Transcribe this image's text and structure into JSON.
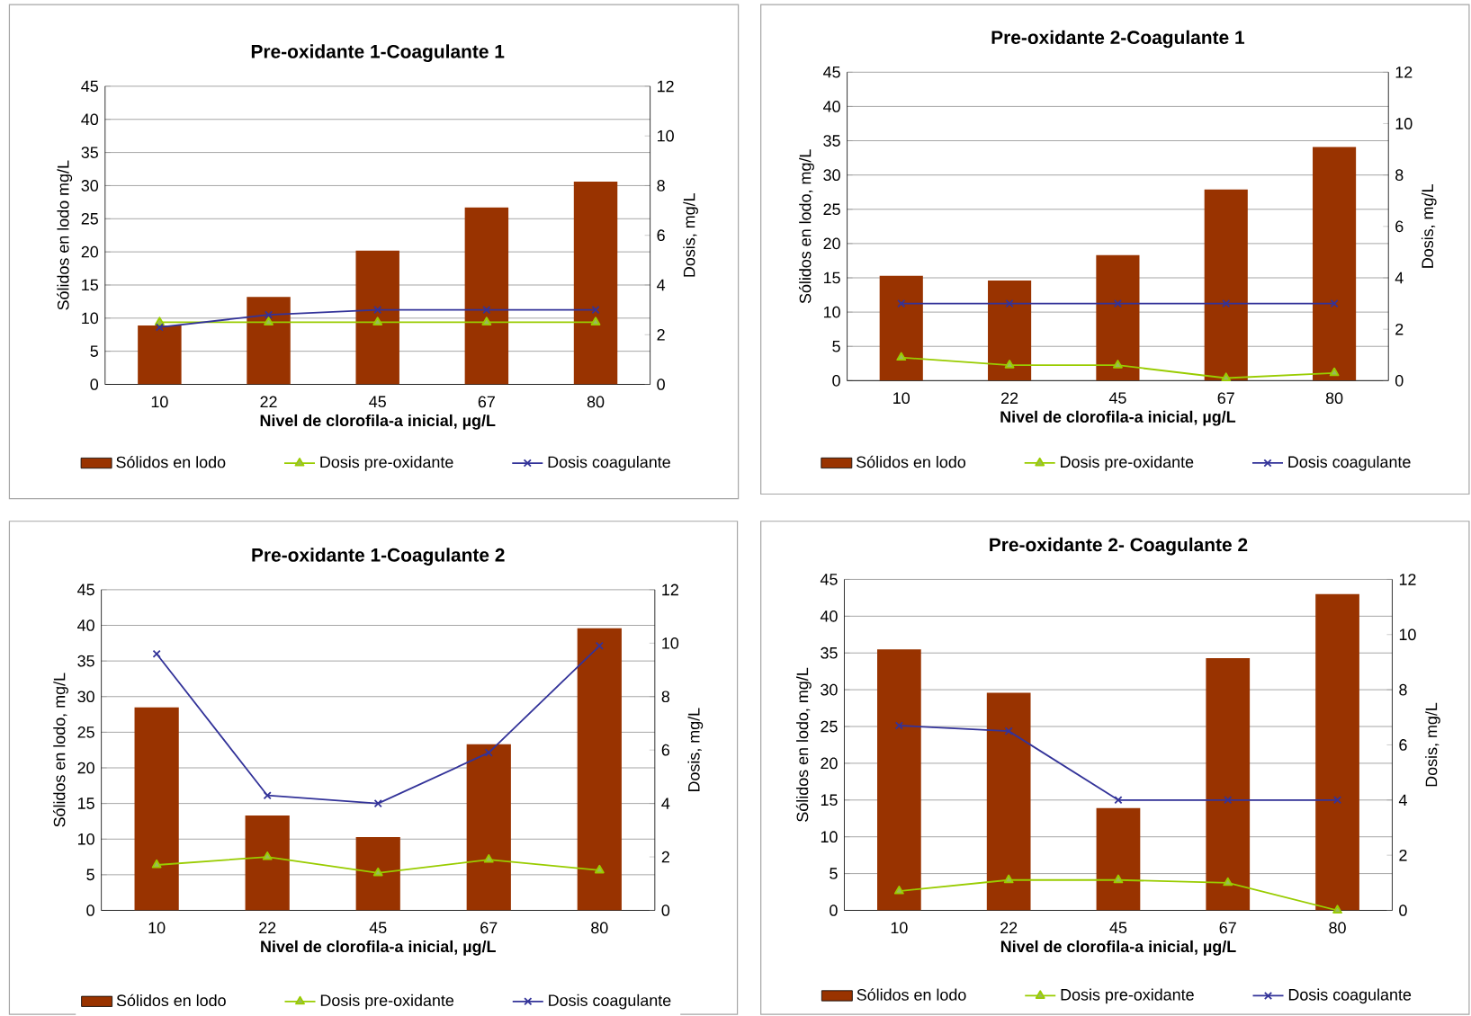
{
  "chart_data": [
    {
      "type": "bar",
      "title": "Pre-oxidante 1-Coagulante 1",
      "xlabel": "Nivel de clorofila-a inicial, µg/L",
      "ylabel": "Sólidos en lodo mg/L",
      "y2label": "Dosis, mg/L",
      "categories": [
        "10",
        "22",
        "45",
        "67",
        "80"
      ],
      "ylim": [
        0,
        45
      ],
      "yticks": [
        0,
        5,
        10,
        15,
        20,
        25,
        30,
        35,
        40,
        45
      ],
      "y2lim": [
        0,
        12
      ],
      "y2ticks": [
        0,
        2,
        4,
        6,
        8,
        10,
        12
      ],
      "grid": "y",
      "legend": "bottom",
      "series": [
        {
          "name": "Sólidos en lodo",
          "color": "#993300",
          "values": [
            8.9,
            13.2,
            20.2,
            26.7,
            30.6
          ]
        },
        {
          "name": "Dosis pre-oxidante",
          "type": "line",
          "axis": "y2",
          "marker": "triangle",
          "color": "#99cc00",
          "values": [
            2.5,
            2.5,
            2.5,
            2.5,
            2.5
          ]
        },
        {
          "name": "Dosis coagulante",
          "type": "line",
          "axis": "y2",
          "marker": "cross",
          "color": "#333399",
          "values": [
            2.3,
            2.8,
            3.0,
            3.0,
            3.0
          ]
        }
      ]
    },
    {
      "type": "bar",
      "title": "Pre-oxidante 2-Coagulante 1",
      "xlabel": "Nivel de clorofila-a inicial, µg/L",
      "ylabel": "Sólidos en lodo, mg/L",
      "y2label": "Dosis, mg/L",
      "categories": [
        "10",
        "22",
        "45",
        "67",
        "80"
      ],
      "ylim": [
        0,
        45
      ],
      "yticks": [
        0,
        5,
        10,
        15,
        20,
        25,
        30,
        35,
        40,
        45
      ],
      "y2lim": [
        0,
        12
      ],
      "y2ticks": [
        0,
        2,
        4,
        6,
        8,
        10,
        12
      ],
      "grid": "y",
      "legend": "bottom",
      "series": [
        {
          "name": "Sólidos en lodo",
          "color": "#993300",
          "values": [
            15.3,
            14.6,
            18.3,
            27.9,
            34.1
          ]
        },
        {
          "name": "Dosis pre-oxidante",
          "type": "line",
          "axis": "y2",
          "marker": "triangle",
          "color": "#99cc00",
          "values": [
            0.9,
            0.6,
            0.6,
            0.1,
            0.3
          ]
        },
        {
          "name": "Dosis coagulante",
          "type": "line",
          "axis": "y2",
          "marker": "cross",
          "color": "#333399",
          "values": [
            3.0,
            3.0,
            3.0,
            3.0,
            3.0
          ]
        }
      ]
    },
    {
      "type": "bar",
      "title": "Pre-oxidante 1-Coagulante 2",
      "xlabel": "Nivel de clorofila-a inicial, µg/L",
      "ylabel": "Sólidos en lodo, mg/L",
      "y2label": "Dosis, mg/L",
      "categories": [
        "10",
        "22",
        "45",
        "67",
        "80"
      ],
      "ylim": [
        0,
        45
      ],
      "yticks": [
        0,
        5,
        10,
        15,
        20,
        25,
        30,
        35,
        40,
        45
      ],
      "y2lim": [
        0,
        12
      ],
      "y2ticks": [
        0,
        2,
        4,
        6,
        8,
        10,
        12
      ],
      "grid": "y",
      "legend": "bottom",
      "series": [
        {
          "name": "Sólidos en lodo",
          "color": "#993300",
          "values": [
            28.5,
            13.3,
            10.3,
            23.3,
            39.6
          ]
        },
        {
          "name": "Dosis pre-oxidante",
          "type": "line",
          "axis": "y2",
          "marker": "triangle",
          "color": "#99cc00",
          "values": [
            1.7,
            2.0,
            1.4,
            1.9,
            1.5
          ]
        },
        {
          "name": "Dosis coagulante",
          "type": "line",
          "axis": "y2",
          "marker": "cross",
          "color": "#333399",
          "values": [
            9.6,
            4.3,
            4.0,
            5.9,
            9.9
          ]
        }
      ]
    },
    {
      "type": "bar",
      "title": "Pre-oxidante 2- Coagulante 2",
      "xlabel": "Nivel de clorofila-a inicial, µg/L",
      "ylabel": "Sólidos en lodo, mg/L",
      "y2label": "Dosis, mg/L",
      "categories": [
        "10",
        "22",
        "45",
        "67",
        "80"
      ],
      "ylim": [
        0,
        45
      ],
      "yticks": [
        0,
        5,
        10,
        15,
        20,
        25,
        30,
        35,
        40,
        45
      ],
      "y2lim": [
        0,
        12
      ],
      "y2ticks": [
        0,
        2,
        4,
        6,
        8,
        10,
        12
      ],
      "grid": "y",
      "legend": "bottom",
      "series": [
        {
          "name": "Sólidos en lodo",
          "color": "#993300",
          "values": [
            35.5,
            29.6,
            13.9,
            34.3,
            43.0
          ]
        },
        {
          "name": "Dosis pre-oxidante",
          "type": "line",
          "axis": "y2",
          "marker": "triangle",
          "color": "#99cc00",
          "values": [
            0.7,
            1.1,
            1.1,
            1.0,
            0.0
          ]
        },
        {
          "name": "Dosis coagulante",
          "type": "line",
          "axis": "y2",
          "marker": "cross",
          "color": "#333399",
          "values": [
            6.7,
            6.5,
            4.0,
            4.0,
            4.0
          ]
        }
      ]
    }
  ]
}
